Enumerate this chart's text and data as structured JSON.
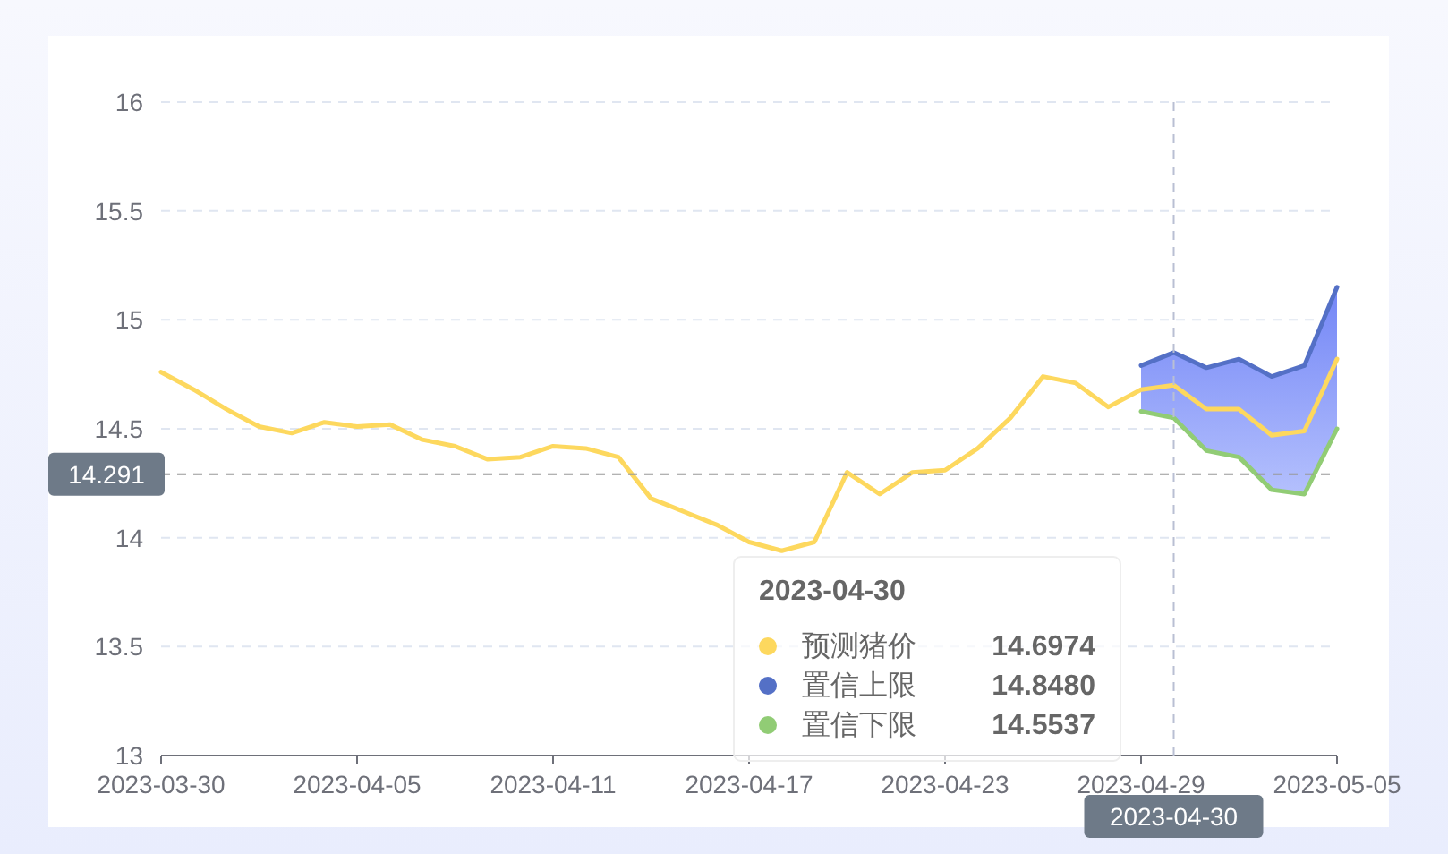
{
  "chart_data": {
    "type": "line",
    "x": [
      "2023-03-30",
      "2023-03-31",
      "2023-04-01",
      "2023-04-02",
      "2023-04-03",
      "2023-04-04",
      "2023-04-05",
      "2023-04-06",
      "2023-04-07",
      "2023-04-08",
      "2023-04-09",
      "2023-04-10",
      "2023-04-11",
      "2023-04-12",
      "2023-04-13",
      "2023-04-14",
      "2023-04-15",
      "2023-04-16",
      "2023-04-17",
      "2023-04-18",
      "2023-04-19",
      "2023-04-20",
      "2023-04-21",
      "2023-04-22",
      "2023-04-23",
      "2023-04-24",
      "2023-04-25",
      "2023-04-26",
      "2023-04-27",
      "2023-04-28",
      "2023-04-29",
      "2023-04-30",
      "2023-05-01",
      "2023-05-02",
      "2023-05-03",
      "2023-05-04",
      "2023-05-05"
    ],
    "series": [
      {
        "name": "预测猪价",
        "color": "#fdd85e",
        "values": [
          14.76,
          14.68,
          14.59,
          14.51,
          14.48,
          14.53,
          14.51,
          14.52,
          14.45,
          14.42,
          14.36,
          14.37,
          14.42,
          14.41,
          14.37,
          14.18,
          14.12,
          14.06,
          13.98,
          13.94,
          13.98,
          14.3,
          14.2,
          14.3,
          14.31,
          14.41,
          14.55,
          14.74,
          14.71,
          14.6,
          14.68,
          14.7,
          14.59,
          14.59,
          14.47,
          14.49,
          14.82
        ],
        "lower": [
          null,
          null,
          null,
          null,
          null,
          null,
          null,
          null,
          null,
          null,
          null,
          null,
          null,
          null,
          null,
          null,
          null,
          null,
          null,
          null,
          null,
          null,
          null,
          null,
          null,
          null,
          null,
          null,
          null,
          null,
          14.58,
          14.55,
          14.4,
          14.37,
          14.22,
          14.2,
          14.5
        ],
        "upper": [
          null,
          null,
          null,
          null,
          null,
          null,
          null,
          null,
          null,
          null,
          null,
          null,
          null,
          null,
          null,
          null,
          null,
          null,
          null,
          null,
          null,
          null,
          null,
          null,
          null,
          null,
          null,
          null,
          null,
          null,
          14.79,
          14.85,
          14.78,
          14.82,
          14.74,
          14.79,
          15.15
        ]
      },
      {
        "name": "置信上限",
        "color": "#5470c6",
        "values": [
          null,
          null,
          null,
          null,
          null,
          null,
          null,
          null,
          null,
          null,
          null,
          null,
          null,
          null,
          null,
          null,
          null,
          null,
          null,
          null,
          null,
          null,
          null,
          null,
          null,
          null,
          null,
          null,
          null,
          null,
          14.79,
          14.85,
          14.78,
          14.82,
          14.74,
          14.79,
          15.15
        ]
      },
      {
        "name": "置信下限",
        "color": "#91cc75",
        "values": [
          null,
          null,
          null,
          null,
          null,
          null,
          null,
          null,
          null,
          null,
          null,
          null,
          null,
          null,
          null,
          null,
          null,
          null,
          null,
          null,
          null,
          null,
          null,
          null,
          null,
          null,
          null,
          null,
          null,
          null,
          14.58,
          14.55,
          14.4,
          14.37,
          14.22,
          14.2,
          14.5
        ]
      }
    ],
    "xlim": [
      "2023-03-30",
      "2023-05-05"
    ],
    "xticks": [
      "2023-03-30",
      "2023-04-05",
      "2023-04-11",
      "2023-04-17",
      "2023-04-23",
      "2023-04-29",
      "2023-05-05"
    ],
    "ylim": [
      13,
      16
    ],
    "yticks": [
      13,
      13.5,
      14,
      14.5,
      15,
      15.5,
      16
    ],
    "grid": "y",
    "marker": "none",
    "line_style": "solid",
    "legend": "bottom",
    "ref_lines": [
      {
        "axis": "x",
        "value": "2023-04-30",
        "label": "2023-04-30",
        "line_style": "dashed",
        "color": "#b9bfd3"
      },
      {
        "axis": "y",
        "value": 14.291,
        "label": "14.291",
        "line_style": "dashed",
        "color": "#999999"
      }
    ],
    "annotations": [
      "2023-04-30",
      "14.6974",
      "14.8480",
      "14.5537"
    ]
  }
}
